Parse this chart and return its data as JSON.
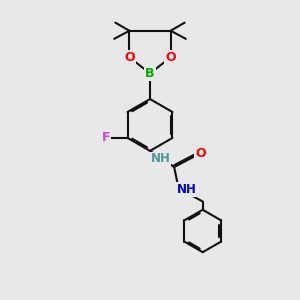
{
  "bg_color": "#e8e8e8",
  "atom_colors": {
    "C": "#000000",
    "N_aromatic": "#4d9999",
    "N_amine": "#0000cc",
    "O": "#ff0000",
    "B": "#00aa00",
    "F": "#cc44cc"
  },
  "bond_color": "#111111",
  "bond_width": 1.5,
  "dbo": 0.055
}
